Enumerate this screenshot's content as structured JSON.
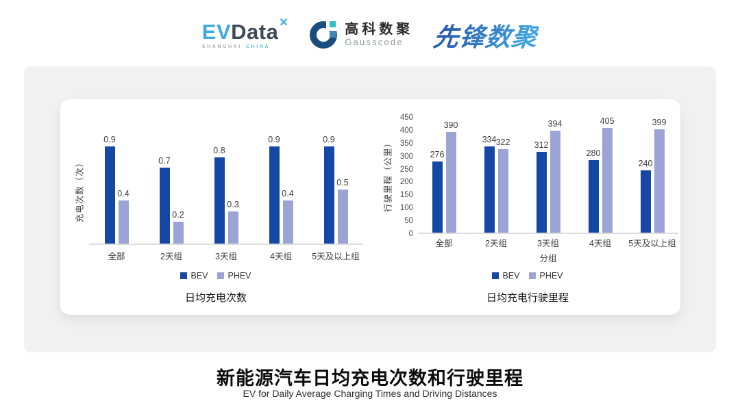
{
  "header": {
    "evdata": {
      "ev": "EV",
      "data": "Data",
      "mark": "✕",
      "sub_left": "SHANGHAI",
      "sub_right": "CHINA"
    },
    "gausscode": {
      "cn": "高科数聚",
      "en": "Gausscode"
    },
    "pioneer": {
      "text": "先锋数聚"
    }
  },
  "colors": {
    "bev": "#1547A5",
    "phev": "#9BA4D4",
    "panel_bg": "#F1F1F1",
    "card_bg": "#FFFFFF",
    "axis_line": "#DCDCDC",
    "label_text": "#3B3B3B",
    "evdata_blue": "#3BAADF",
    "evdata_dark": "#3D4A57",
    "gauss_navy": "#1B4E7E",
    "gauss_teal": "#2FBFC4",
    "gauss_blue": "#4187B8",
    "pioneer_blue_dark": "#2A5FB0",
    "pioneer_blue_light": "#42A4DE"
  },
  "chart_data": [
    {
      "type": "bar",
      "title": "日均充电次数",
      "ylabel": "充电次数（次）",
      "xlabel": "",
      "categories": [
        "全部",
        "2天组",
        "3天组",
        "4天组",
        "5天及以上组"
      ],
      "series": [
        {
          "name": "BEV",
          "color": "#1547A5",
          "values": [
            0.9,
            0.7,
            0.8,
            0.9,
            0.9
          ]
        },
        {
          "name": "PHEV",
          "color": "#9BA4D4",
          "values": [
            0.4,
            0.2,
            0.3,
            0.4,
            0.5
          ]
        }
      ],
      "ylim": [
        0,
        1.0
      ],
      "yticks_visible": false,
      "grid": false,
      "legend_position": "bottom",
      "data_labels": true
    },
    {
      "type": "bar",
      "title": "日均充电行驶里程",
      "ylabel": "行驶里程（公里）",
      "xlabel": "分组",
      "categories": [
        "全部",
        "2天组",
        "3天组",
        "4天组",
        "5天及以上组"
      ],
      "series": [
        {
          "name": "BEV",
          "color": "#1547A5",
          "values": [
            276,
            334,
            312,
            280,
            240
          ]
        },
        {
          "name": "PHEV",
          "color": "#9BA4D4",
          "values": [
            390,
            322,
            394,
            405,
            399
          ]
        }
      ],
      "ylim": [
        0,
        450
      ],
      "ytick_step": 50,
      "yticks_visible": true,
      "grid": false,
      "legend_position": "bottom",
      "data_labels": true
    }
  ],
  "footer": {
    "title": "新能源汽车日均充电次数和行驶里程",
    "subtitle": "EV for Daily Average Charging Times and Driving Distances"
  }
}
